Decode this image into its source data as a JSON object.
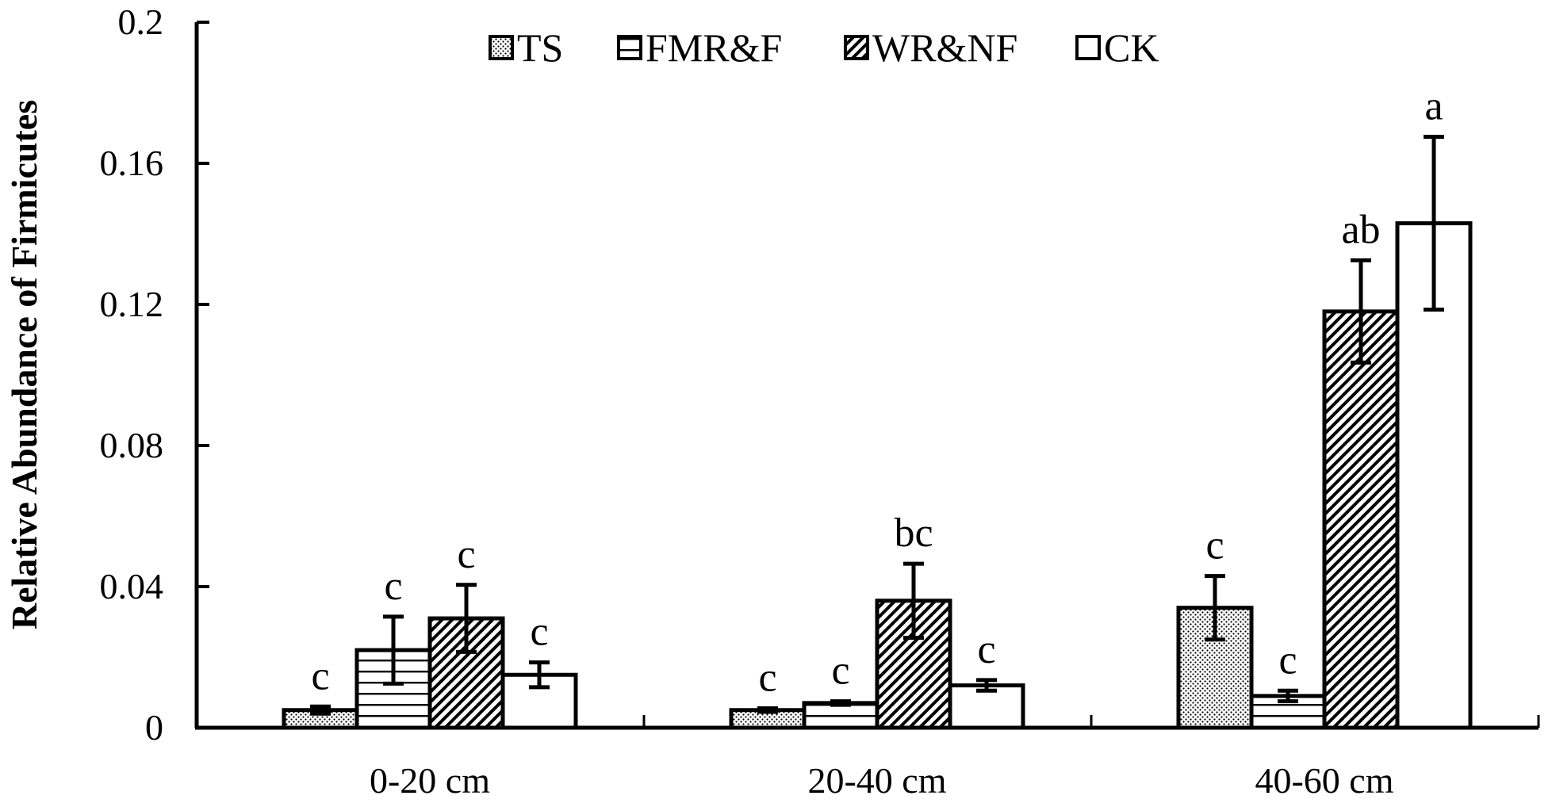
{
  "chart_data": {
    "type": "bar",
    "ylabel": "Relative Abundance of Firmicutes",
    "xlabel": "",
    "ylim": [
      0,
      0.2
    ],
    "yticks": [
      {
        "value": 0,
        "label": "0"
      },
      {
        "value": 0.04,
        "label": "0.04"
      },
      {
        "value": 0.08,
        "label": "0.08"
      },
      {
        "value": 0.12,
        "label": "0.12"
      },
      {
        "value": 0.16,
        "label": "0.16"
      },
      {
        "value": 0.2,
        "label": "0.2"
      }
    ],
    "categories": [
      "0-20 cm",
      "20-40 cm",
      "40-60 cm"
    ],
    "legend_position": "top-center",
    "grid": false,
    "series": [
      {
        "name": "TS",
        "pattern": "dots",
        "values": [
          0.005,
          0.005,
          0.034
        ],
        "errors": [
          0.001,
          0.0005,
          0.009
        ],
        "labels": [
          "c",
          "c",
          "c"
        ]
      },
      {
        "name": "FMR&F",
        "pattern": "horizontal-lines",
        "values": [
          0.022,
          0.007,
          0.009
        ],
        "errors": [
          0.0095,
          0.0005,
          0.0015
        ],
        "labels": [
          "c",
          "c",
          "c"
        ]
      },
      {
        "name": "WR&NF",
        "pattern": "diagonal-stripes",
        "values": [
          0.031,
          0.036,
          0.118
        ],
        "errors": [
          0.0095,
          0.0105,
          0.0145
        ],
        "labels": [
          "c",
          "bc",
          "ab"
        ]
      },
      {
        "name": "CK",
        "pattern": "solid-white",
        "values": [
          0.015,
          0.012,
          0.143
        ],
        "errors": [
          0.0035,
          0.0015,
          0.0245
        ],
        "labels": [
          "c",
          "c",
          "a"
        ]
      }
    ],
    "colors": {
      "stroke": "#000000",
      "fill": "#ffffff"
    }
  }
}
